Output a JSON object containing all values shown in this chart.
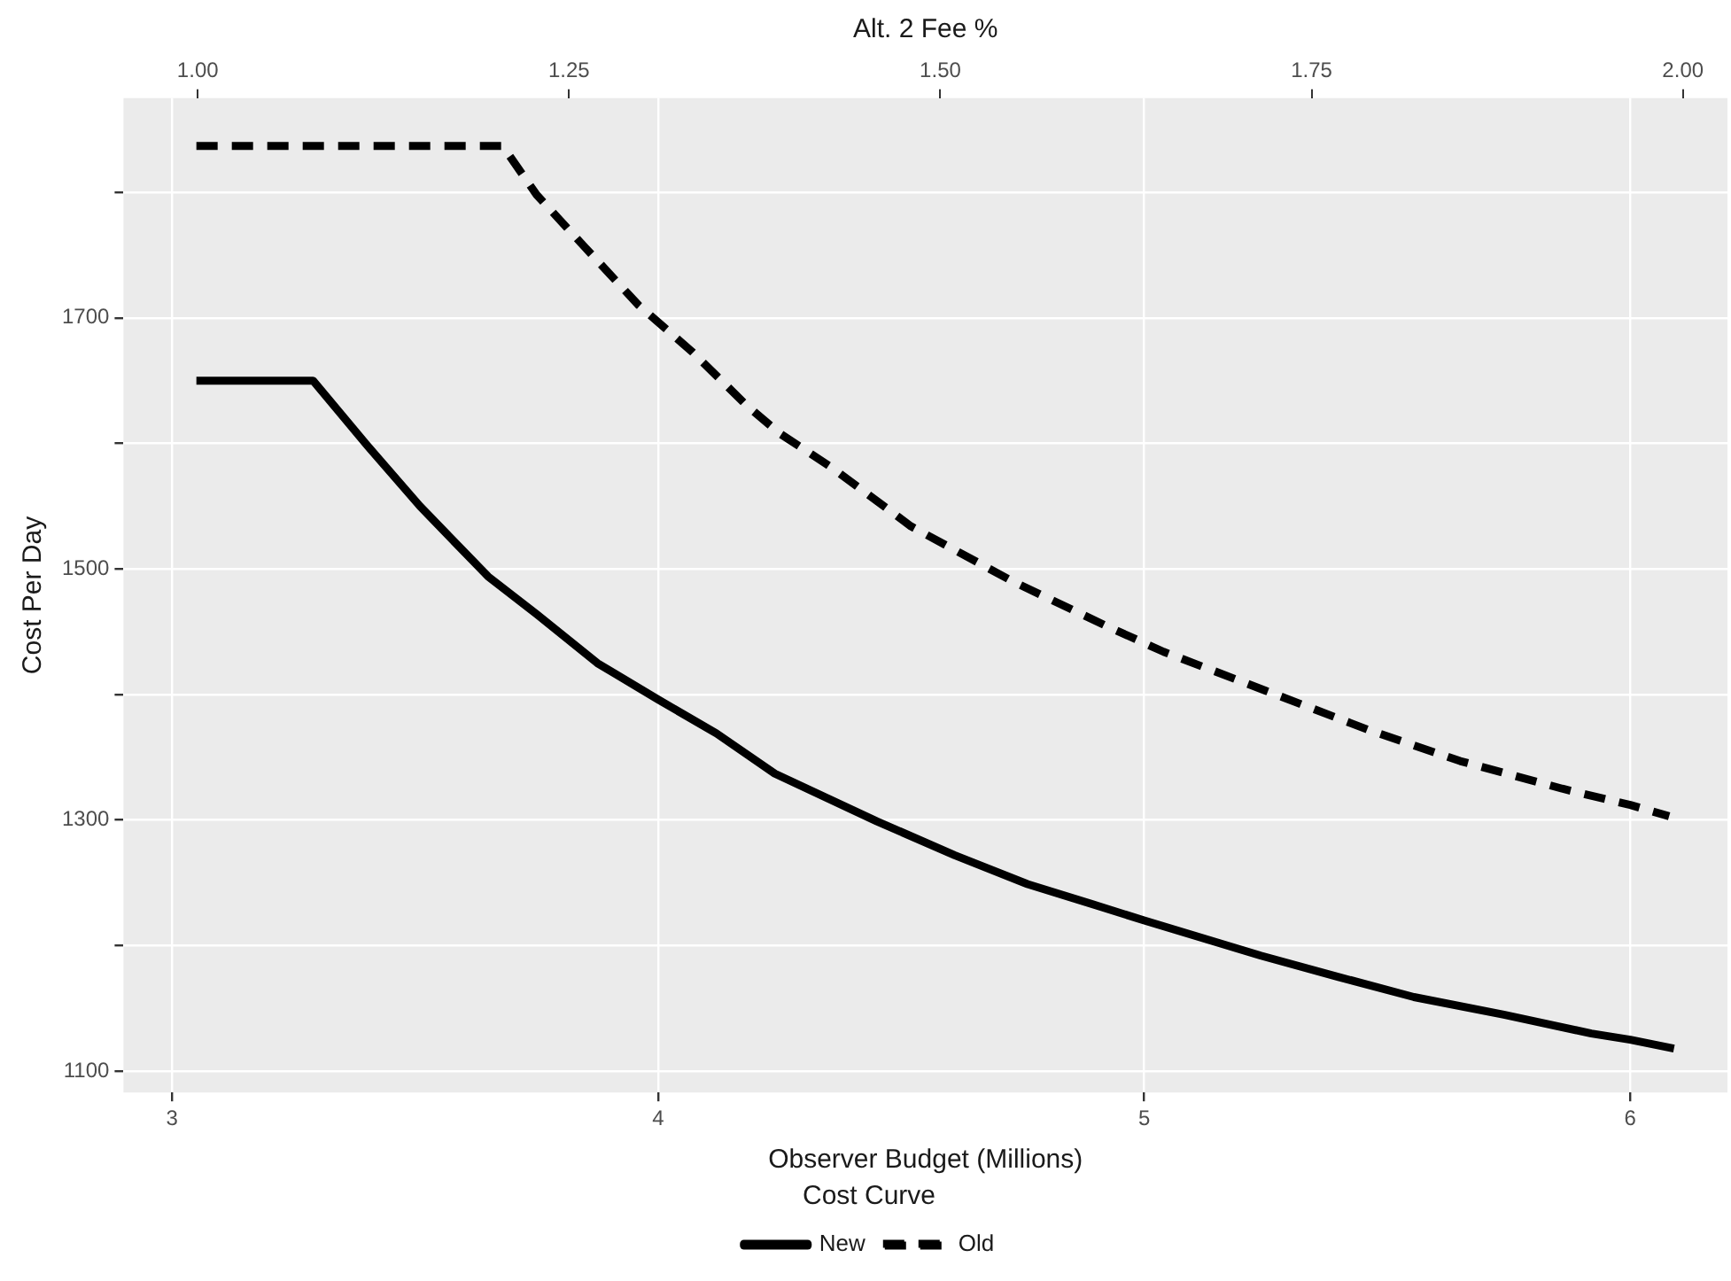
{
  "chart_data": {
    "type": "line",
    "xlabel": "Observer Budget (Millions)",
    "ylabel": "Cost Per Day",
    "x2label": "Alt. 2 Fee %",
    "legend_title": "Cost Curve",
    "xlim": [
      2.9,
      6.2
    ],
    "xticks": [
      3,
      4,
      5,
      6
    ],
    "x2lim": [
      0.95,
      2.03
    ],
    "x2ticks": [
      {
        "value": 1,
        "label": "1.00"
      },
      {
        "value": 1.25,
        "label": "1.25"
      },
      {
        "value": 1.5,
        "label": "1.50"
      },
      {
        "value": 1.75,
        "label": "1.75"
      },
      {
        "value": 2,
        "label": "2.00"
      }
    ],
    "ylim": [
      1083,
      1875
    ],
    "yticks": [
      1100,
      {
        "value": 1200,
        "label": null
      },
      1300,
      {
        "value": 1400,
        "label": null
      },
      1500,
      {
        "value": 1600,
        "label": null
      },
      1700,
      {
        "value": 1800,
        "label": null
      }
    ],
    "grid": true,
    "legend": "bottom",
    "series": [
      {
        "name": "New",
        "color": "#000000",
        "line_style": "solid",
        "x": [
          3.05,
          3.29,
          3.4,
          3.51,
          3.65,
          3.75,
          3.875,
          4.0,
          4.12,
          4.24,
          4.45,
          4.61,
          4.76,
          4.91,
          5.0,
          5.24,
          5.4,
          5.555,
          5.74,
          5.92,
          6.0,
          6.09
        ],
        "values": [
          1650,
          1650,
          1599,
          1550,
          1494,
          1464,
          1425,
          1396,
          1369,
          1337,
          1299,
          1272,
          1249,
          1231,
          1220,
          1192,
          1175,
          1159,
          1145,
          1130,
          1125,
          1118
        ]
      },
      {
        "name": "Old",
        "color": "#000000",
        "line_style": "dashed",
        "x": [
          3.05,
          3.68,
          3.75,
          3.85,
          3.96,
          4.07,
          4.18,
          4.25,
          4.36,
          4.52,
          4.73,
          4.92,
          5.04,
          5.25,
          5.46,
          5.65,
          5.86,
          6.0,
          6.08
        ],
        "values": [
          1837,
          1837,
          1798,
          1756,
          1710,
          1673,
          1631,
          1608,
          1580,
          1534,
          1490,
          1455,
          1434,
          1403,
          1372,
          1347,
          1325,
          1312,
          1303
        ]
      }
    ]
  }
}
